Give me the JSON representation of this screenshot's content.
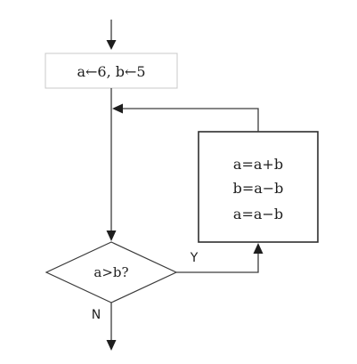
{
  "flowchart": {
    "init": "a←6,  b←5",
    "loop_lines": [
      "a=a+b",
      "b=a−b",
      "a=a−b"
    ],
    "decision": "a>b?",
    "yes_label": "Y",
    "no_label": "N"
  }
}
